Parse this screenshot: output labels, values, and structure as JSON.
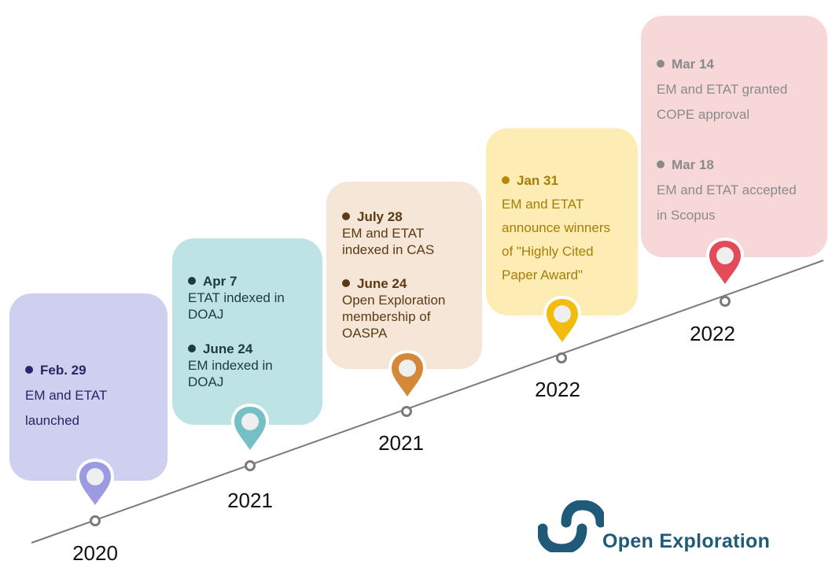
{
  "milestones": [
    {
      "year": "2020",
      "events": [
        {
          "date": "Feb. 29",
          "text": [
            "EM and ETAT",
            "launched"
          ]
        }
      ]
    },
    {
      "year": "2021",
      "events": [
        {
          "date": "Apr 7",
          "text": [
            "ETAT indexed in",
            "DOAJ"
          ]
        },
        {
          "date": "June 24",
          "text": [
            "EM indexed in",
            "DOAJ"
          ]
        }
      ]
    },
    {
      "year": "2021",
      "events": [
        {
          "date": "July 28",
          "text": [
            "EM and ETAT",
            "indexed in CAS"
          ]
        },
        {
          "date": "June 24",
          "text": [
            "Open Exploration",
            "membership of",
            "OASPA"
          ]
        }
      ]
    },
    {
      "year": "2022",
      "events": [
        {
          "date": "Jan 31",
          "text": [
            "EM and ETAT",
            "announce winners",
            "of \"Highly Cited",
            "Paper Award\""
          ]
        }
      ]
    },
    {
      "year": "2022",
      "events": [
        {
          "date": "Mar 14",
          "text": [
            "EM and ETAT granted",
            "COPE approval"
          ]
        },
        {
          "date": "Mar 18",
          "text": [
            "EM and ETAT accepted",
            "in Scopus"
          ]
        }
      ]
    }
  ],
  "colors": {
    "card_bg": [
      "#cfcff0",
      "#bde3e5",
      "#f6e6d7",
      "#fdedb4",
      "#f8d7d9"
    ],
    "pin": [
      "#9c9ae0",
      "#74c0c4",
      "#d4883a",
      "#f1bc0c",
      "#e24b57"
    ],
    "text": [
      "#2a2468",
      "#1d3a3c",
      "#5b3a14",
      "#a77c08",
      "#8a8a8a"
    ],
    "dot": [
      "#2a2468",
      "#1d3a3c",
      "#5b3a14",
      "#b58a06",
      "#8a8a8a"
    ],
    "line": "#7a7a7a",
    "logo": "#1f5a78"
  },
  "icons": {
    "pin": "map-pin-icon",
    "timeline_node": "circle-node-icon",
    "logo": "open-exploration-logo-icon"
  },
  "logo": {
    "text": "Open Exploration"
  }
}
